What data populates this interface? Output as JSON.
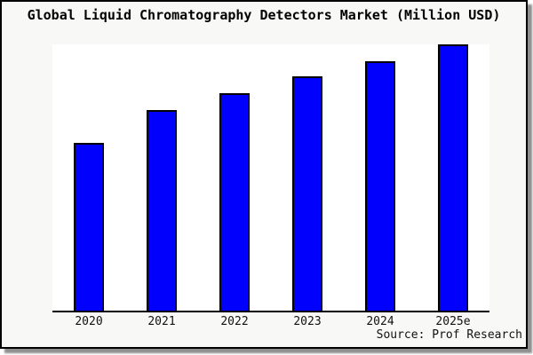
{
  "window": {
    "background_color": "#f8f8f6",
    "frame_border_color": "#000000",
    "shadow_color": "#8f8f8f"
  },
  "chart_data": {
    "type": "bar",
    "title": "Global Liquid Chromatography Detectors Market (Million USD)",
    "categories": [
      "2020",
      "2021",
      "2022",
      "2023",
      "2024",
      "2025e"
    ],
    "values": [
      62.9,
      75.2,
      81.6,
      87.9,
      93.8,
      100
    ],
    "values_note": "No y-axis scale, gridlines or data labels are shown; values are relative bar heights indexed to tallest bar (2025e = 100)",
    "xlabel": "",
    "ylabel": "",
    "ylim": [
      0,
      100
    ],
    "grid": false,
    "legend": "none",
    "y_axis_shown": false,
    "bar_color": "#0000fc",
    "bar_border_color": "#000000",
    "axis_line_color": "#000000",
    "plot_background": "#ffffff",
    "source": "Source: Prof Research"
  }
}
